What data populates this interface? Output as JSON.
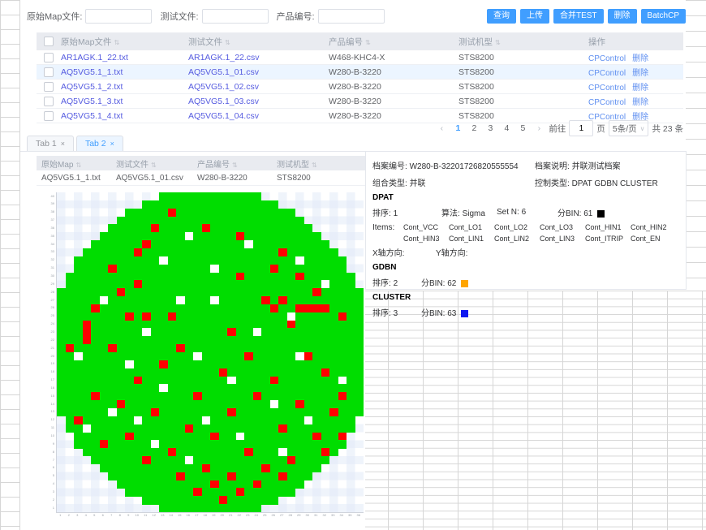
{
  "colors": {
    "accent": "#409eff",
    "file_link": "#555be0",
    "op_link": "#5f8ff0",
    "header_bg": "#e9ebf0",
    "selected_row": "#ecf5ff",
    "dpat_bin": "#000000",
    "gdbn_bin": "#ffa500",
    "cluster_bin": "#0f18f0"
  },
  "toolbar": {
    "fields": [
      {
        "label": "原始Map文件:",
        "value": ""
      },
      {
        "label": "测试文件:",
        "value": ""
      },
      {
        "label": "产品编号:",
        "value": ""
      }
    ],
    "buttons": [
      "查询",
      "上传",
      "合并TEST",
      "删除",
      "BatchCP"
    ]
  },
  "table": {
    "headers": {
      "map": "原始Map文件",
      "test": "测试文件",
      "prod": "产品编号",
      "mach": "测试机型",
      "ops": "操作"
    },
    "rows": [
      {
        "map": "AR1AGK.1_22.txt",
        "test": "AR1AGK.1_22.csv",
        "prod": "W468-KHC4-X",
        "mach": "STS8200",
        "op1": "CPControl",
        "op2": "删除"
      },
      {
        "map": "AQ5VG5.1_1.txt",
        "test": "AQ5VG5.1_01.csv",
        "prod": "W280-B-3220",
        "mach": "STS8200",
        "op1": "CPControl",
        "op2": "删除"
      },
      {
        "map": "AQ5VG5.1_2.txt",
        "test": "AQ5VG5.1_02.csv",
        "prod": "W280-B-3220",
        "mach": "STS8200",
        "op1": "CPControl",
        "op2": "删除"
      },
      {
        "map": "AQ5VG5.1_3.txt",
        "test": "AQ5VG5.1_03.csv",
        "prod": "W280-B-3220",
        "mach": "STS8200",
        "op1": "CPControl",
        "op2": "删除"
      },
      {
        "map": "AQ5VG5.1_4.txt",
        "test": "AQ5VG5.1_04.csv",
        "prod": "W280-B-3220",
        "mach": "STS8200",
        "op1": "CPControl",
        "op2": "删除"
      }
    ]
  },
  "pagination": {
    "prev": "‹",
    "next": "›",
    "pages": [
      "1",
      "2",
      "3",
      "4",
      "5"
    ],
    "active": "1",
    "goto_label": "前往",
    "goto_value": "1",
    "page_label": "页",
    "page_size": "5条/页",
    "total": "共 23 条"
  },
  "tabs": [
    {
      "label": "Tab 1",
      "close": "×"
    },
    {
      "label": "Tab 2",
      "close": "×"
    }
  ],
  "subtable": {
    "headers": [
      "原始Map",
      "测试文件",
      "产品编号",
      "测试机型"
    ],
    "row": [
      "AQ5VG5.1_1.txt",
      "AQ5VG5.1_01.csv",
      "W280-B-3220",
      "STS8200"
    ]
  },
  "detail": {
    "archive_no_label": "档案编号:",
    "archive_no": "W280-B-32201726820555554",
    "archive_desc_label": "档案说明:",
    "archive_desc": "并联测试档案",
    "combo_label": "组合类型:",
    "combo": "并联",
    "control_label": "控制类型:",
    "control": "DPAT GDBN CLUSTER",
    "dpat": {
      "title": "DPAT",
      "order_label": "排序:",
      "order": "1",
      "algo_label": "算法:",
      "algo": "Sigma",
      "setn_label": "Set N:",
      "setn": "6",
      "bin_label": "分BIN:",
      "bin": "61",
      "items_label": "Items:",
      "items": [
        "Cont_VCC",
        "Cont_LO1",
        "Cont_LO2",
        "Cont_LO3",
        "Cont_HIN1",
        "Cont_HIN2",
        "Cont_HIN3",
        "Cont_LIN1",
        "Cont_LIN2",
        "Cont_LIN3",
        "Cont_ITRIP",
        "Cont_EN"
      ],
      "xdir_label": "X轴方向:",
      "xdir": "",
      "ydir_label": "Y轴方向:",
      "ydir": ""
    },
    "gdbn": {
      "title": "GDBN",
      "order_label": "排序:",
      "order": "2",
      "bin_label": "分BIN:",
      "bin": "62"
    },
    "cluster": {
      "title": "CLUSTER",
      "order_label": "排序:",
      "order": "3",
      "bin_label": "分BIN:",
      "bin": "63"
    }
  },
  "wafer": {
    "cols": 36,
    "rows": 40,
    "colors": {
      "pass": "#00dd00",
      "fail": "#ff0000",
      "empty": "#ffffff"
    },
    "red_cells": [
      [
        13,
        2
      ],
      [
        11,
        4
      ],
      [
        17,
        4
      ],
      [
        21,
        5
      ],
      [
        10,
        6
      ],
      [
        9,
        7
      ],
      [
        26,
        7
      ],
      [
        6,
        9
      ],
      [
        25,
        9
      ],
      [
        21,
        10
      ],
      [
        28,
        10
      ],
      [
        9,
        11
      ],
      [
        7,
        12
      ],
      [
        30,
        12
      ],
      [
        24,
        13
      ],
      [
        26,
        13
      ],
      [
        4,
        14
      ],
      [
        25,
        14
      ],
      [
        28,
        14
      ],
      [
        29,
        14
      ],
      [
        30,
        14
      ],
      [
        31,
        14
      ],
      [
        8,
        15
      ],
      [
        10,
        15
      ],
      [
        13,
        15
      ],
      [
        33,
        15
      ],
      [
        3,
        16
      ],
      [
        27,
        16
      ],
      [
        3,
        17
      ],
      [
        20,
        17
      ],
      [
        3,
        18
      ],
      [
        1,
        19
      ],
      [
        6,
        19
      ],
      [
        14,
        19
      ],
      [
        22,
        20
      ],
      [
        29,
        20
      ],
      [
        12,
        21
      ],
      [
        19,
        22
      ],
      [
        31,
        22
      ],
      [
        9,
        23
      ],
      [
        25,
        23
      ],
      [
        4,
        25
      ],
      [
        16,
        25
      ],
      [
        23,
        25
      ],
      [
        33,
        25
      ],
      [
        7,
        26
      ],
      [
        28,
        26
      ],
      [
        11,
        27
      ],
      [
        20,
        27
      ],
      [
        32,
        27
      ],
      [
        2,
        28
      ],
      [
        15,
        29
      ],
      [
        26,
        29
      ],
      [
        8,
        30
      ],
      [
        18,
        30
      ],
      [
        30,
        30
      ],
      [
        33,
        30
      ],
      [
        5,
        31
      ],
      [
        13,
        32
      ],
      [
        22,
        32
      ],
      [
        31,
        32
      ],
      [
        10,
        33
      ],
      [
        27,
        33
      ],
      [
        17,
        34
      ],
      [
        24,
        34
      ],
      [
        14,
        35
      ],
      [
        20,
        35
      ],
      [
        26,
        35
      ],
      [
        18,
        36
      ],
      [
        23,
        36
      ],
      [
        16,
        37
      ],
      [
        21,
        37
      ],
      [
        19,
        38
      ]
    ],
    "white_cells": [
      [
        15,
        5
      ],
      [
        22,
        6
      ],
      [
        12,
        8
      ],
      [
        28,
        8
      ],
      [
        18,
        9
      ],
      [
        31,
        11
      ],
      [
        5,
        13
      ],
      [
        14,
        13
      ],
      [
        18,
        13
      ],
      [
        27,
        15
      ],
      [
        10,
        17
      ],
      [
        23,
        17
      ],
      [
        2,
        20
      ],
      [
        16,
        20
      ],
      [
        28,
        20
      ],
      [
        8,
        21
      ],
      [
        20,
        23
      ],
      [
        33,
        23
      ],
      [
        12,
        24
      ],
      [
        25,
        26
      ],
      [
        6,
        27
      ],
      [
        9,
        28
      ],
      [
        17,
        28
      ],
      [
        29,
        28
      ],
      [
        3,
        29
      ],
      [
        21,
        30
      ],
      [
        11,
        31
      ],
      [
        26,
        32
      ],
      [
        15,
        33
      ]
    ]
  }
}
